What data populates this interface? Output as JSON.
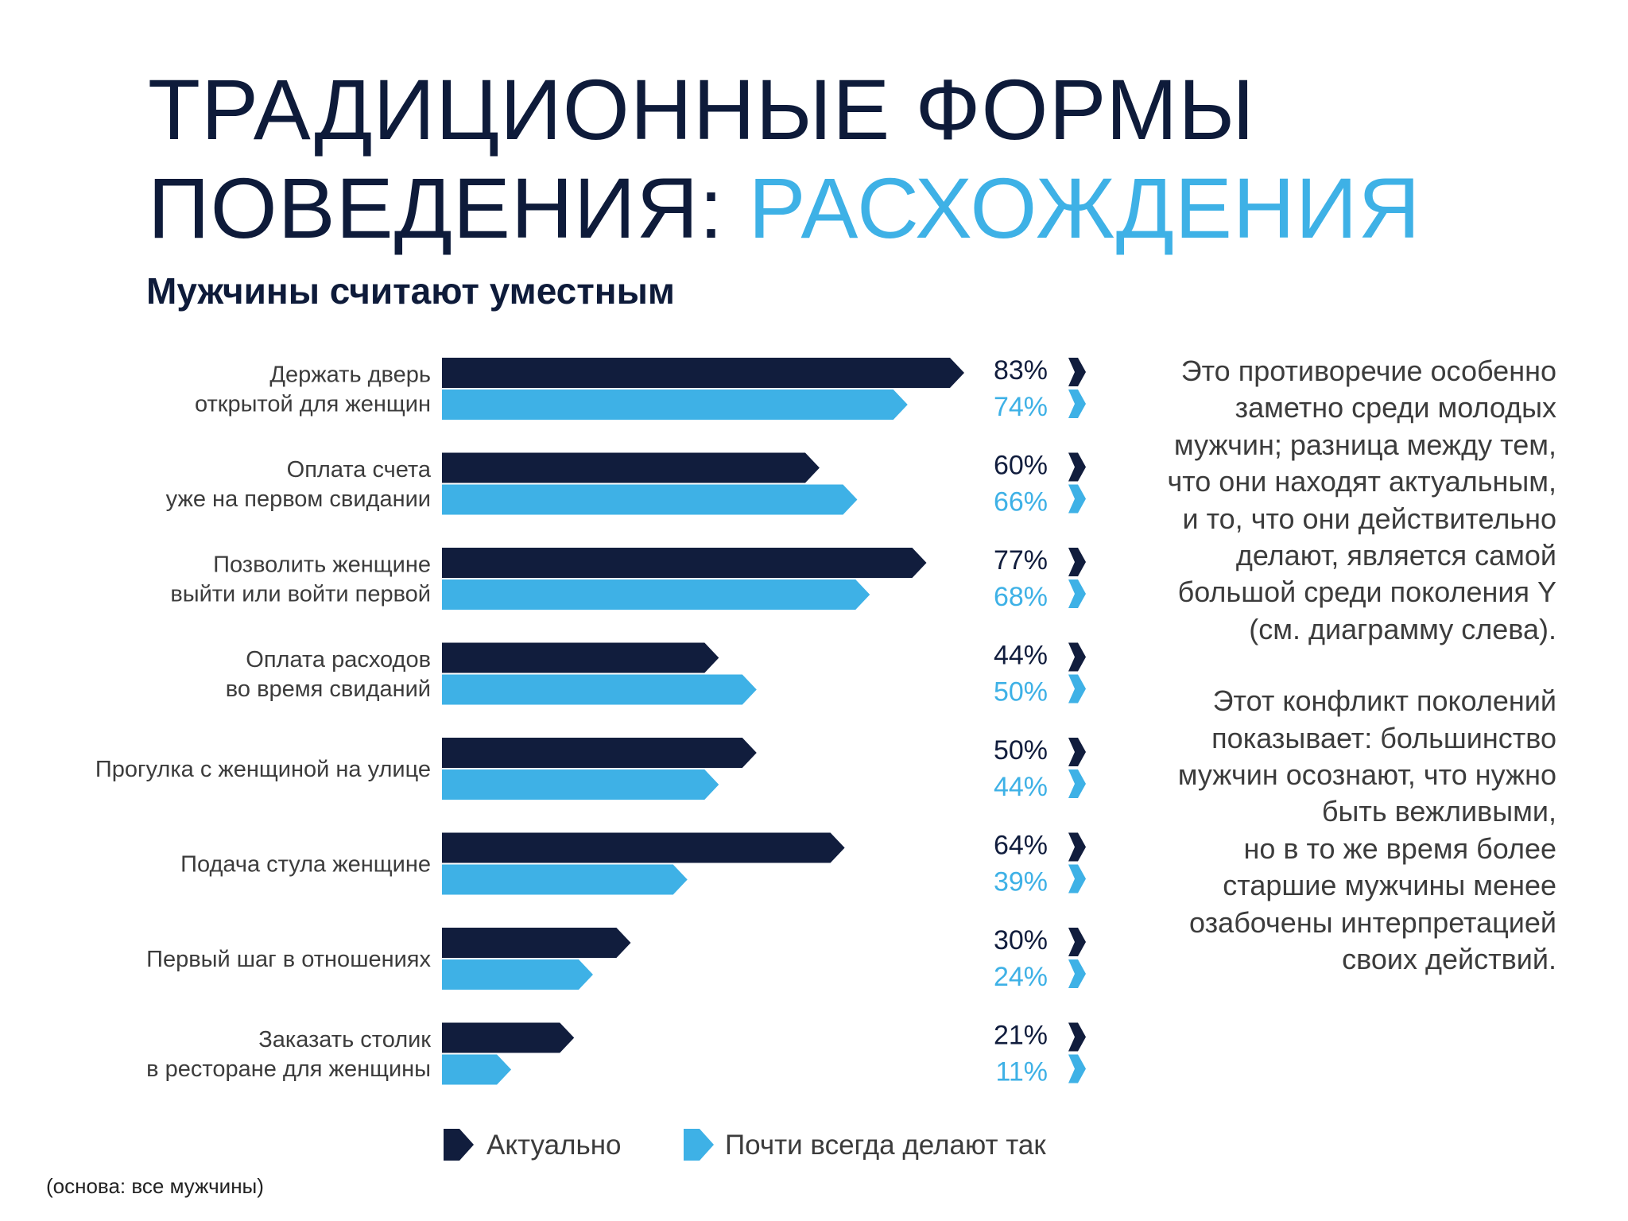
{
  "title": {
    "line1": "ТРАДИЦИОННЫЕ ФОРМЫ",
    "line2_part1": "ПОВЕДЕНИЯ: ",
    "line2_part2": "РАСХОЖДЕНИЯ"
  },
  "subtitle": "Мужчины считают уместным",
  "colors": {
    "title_dark": "#0e1b3a",
    "accent": "#3eb1e6",
    "series_actual": "#111d3d",
    "series_do": "#3eb1e6",
    "text_gray": "#3c3c3c"
  },
  "chart_data": {
    "type": "bar",
    "orientation": "horizontal",
    "categories": [
      [
        "Держать дверь",
        "открытой для женщин"
      ],
      [
        "Оплата счета",
        "уже на первом свидании"
      ],
      [
        "Позволить женщине",
        "выйти или войти первой"
      ],
      [
        "Оплата расходов",
        "во время свиданий"
      ],
      [
        "Прогулка с женщиной на улице"
      ],
      [
        "Подача стула женщине"
      ],
      [
        "Первый шаг в отношениях"
      ],
      [
        "Заказать столик",
        "в ресторане для женщины"
      ]
    ],
    "series": [
      {
        "name": "Актуально",
        "color": "#111d3d",
        "values": [
          83,
          60,
          77,
          44,
          50,
          64,
          30,
          21
        ]
      },
      {
        "name": "Почти всегда делают так",
        "color": "#3eb1e6",
        "values": [
          74,
          66,
          68,
          50,
          44,
          39,
          24,
          11
        ]
      }
    ],
    "value_suffix": "%",
    "xlim": [
      0,
      83
    ],
    "legend_position": "bottom"
  },
  "side_text": {
    "paragraph1": "Это противоречие особенно\nзаметно среди молодых\nмужчин; разница между тем,\nчто они находят актуальным,\nи то, что они действительно\nделают, является самой\nбольшой среди поколения Y\n(см. диаграмму слева).",
    "paragraph2": "Этот конфликт поколений\nпоказывает: большинство\nмужчин осознают, что нужно\nбыть вежливыми,\nно в то же время более\nстаршие мужчины менее\nозабочены интерпретацией\nсвоих действий."
  },
  "footnote": "(основа: все мужчины)"
}
